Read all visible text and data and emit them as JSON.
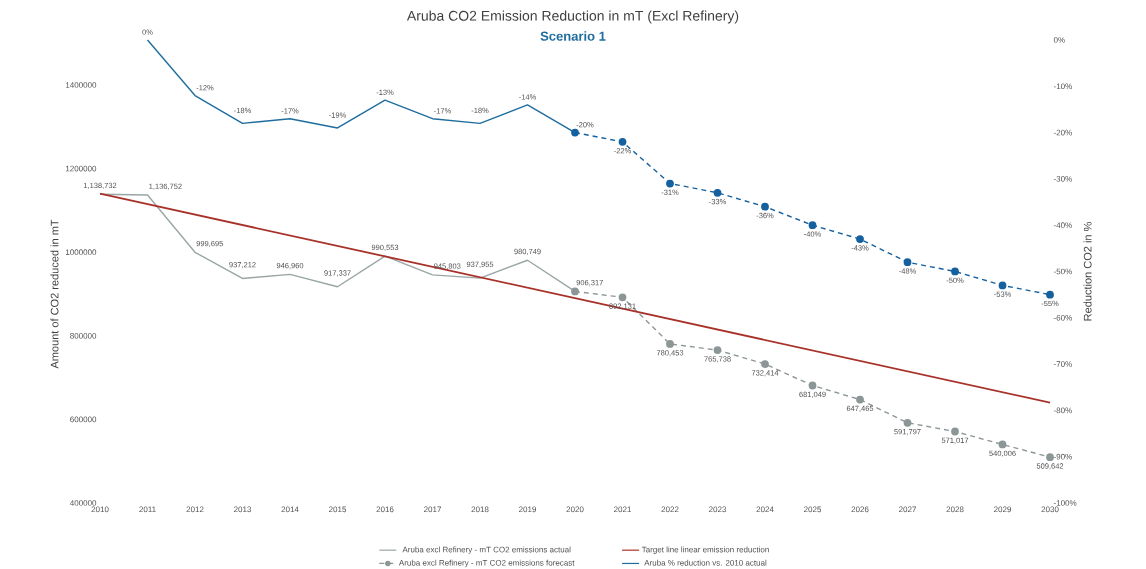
{
  "chart_data": {
    "type": "line",
    "title": "Aruba CO2 Emission Reduction in mT (Excl Refinery)",
    "subtitle": "Scenario 1",
    "ylabel": "Amount of CO2 reduced in mT",
    "y2label": "Reduction CO2 in %",
    "xlim": [
      2010,
      2030
    ],
    "xticks": [
      2010,
      2011,
      2012,
      2013,
      2014,
      2015,
      2016,
      2017,
      2018,
      2019,
      2020,
      2021,
      2022,
      2023,
      2024,
      2025,
      2026,
      2027,
      2028,
      2029,
      2030
    ],
    "ylim": [
      400000,
      1400000
    ],
    "yticks": [
      400000,
      600000,
      800000,
      1000000,
      1200000,
      1400000
    ],
    "y2lim": [
      -100,
      0
    ],
    "y2ticks": [
      {
        "value": 0,
        "label": "0%"
      },
      {
        "value": -10,
        "label": "-10%"
      },
      {
        "value": -20,
        "label": "-20%"
      },
      {
        "value": -30,
        "label": "-30%"
      },
      {
        "value": -40,
        "label": "-40%"
      },
      {
        "value": -50,
        "label": "-50%"
      },
      {
        "value": -60,
        "label": "-60%"
      },
      {
        "value": -70,
        "label": "-70%"
      },
      {
        "value": -80,
        "label": "-80%"
      },
      {
        "value": -90,
        "label": "-90%"
      },
      {
        "value": -100,
        "label": "-100%"
      }
    ],
    "legend": "bottom",
    "grid": false,
    "series": [
      {
        "name": "Aruba excl Refinery - mT CO2 emissions actual",
        "color": "#9aa5a5",
        "marker": "none",
        "line_style": "solid",
        "x": [
          2010,
          2011,
          2012,
          2013,
          2014,
          2015,
          2016,
          2017,
          2018,
          2019,
          2020
        ],
        "values": [
          1138732,
          1136752,
          999695,
          937212,
          946960,
          917337,
          990553,
          945803,
          937955,
          980749,
          906317
        ],
        "value_labels": [
          "1,138,732",
          "1,136,752",
          "999,695",
          "937,212",
          "946,960",
          "917,337",
          "990,553",
          "945,803",
          "937,955",
          "980,749",
          "906,317"
        ]
      },
      {
        "name": "Aruba excl Refinery - mT CO2 emissions forecast",
        "color": "#8c9696",
        "marker": "circle",
        "line_style": "dashed",
        "x": [
          2020,
          2021,
          2022,
          2023,
          2024,
          2025,
          2026,
          2027,
          2028,
          2029,
          2030
        ],
        "values": [
          906000,
          892131,
          780453,
          765738,
          732414,
          681049,
          647465,
          591797,
          571017,
          540006,
          509642
        ],
        "value_labels": [
          null,
          "892,131",
          "780,453",
          "765,738",
          "732,414",
          "681,049",
          "647,465",
          "591,797",
          "571,017",
          "540,006",
          "509,642"
        ]
      },
      {
        "name": "Target line linear emission reduction",
        "color": "#a8322a",
        "marker": "none",
        "line_style": "solid",
        "x": [
          2010,
          2030
        ],
        "values": [
          1140000,
          640000
        ]
      },
      {
        "name": "Aruba % reduction vs. 2010 actual",
        "color": "#1f6d9e",
        "marker": "none",
        "line_style": "solid",
        "axis": "y2",
        "x": [
          2011,
          2012,
          2013,
          2014,
          2015,
          2016,
          2017,
          2018,
          2019,
          2020
        ],
        "values": [
          0,
          -12,
          -18,
          -17,
          -19,
          -13,
          -17,
          -18,
          -14,
          -20
        ],
        "value_labels": [
          "0%",
          "-12%",
          "-18%",
          "-17%",
          "-19%",
          "-13%",
          "-17%",
          "-18%",
          "-14%",
          "-20%"
        ]
      },
      {
        "color": "#15609e",
        "marker": "circle",
        "line_style": "dashed",
        "axis": "y2",
        "x": [
          2020,
          2021,
          2022,
          2023,
          2024,
          2025,
          2026,
          2027,
          2028,
          2029,
          2030
        ],
        "values": [
          -20,
          -22,
          -31,
          -33,
          -36,
          -40,
          -43,
          -48,
          -50,
          -53,
          -55
        ],
        "value_labels": [
          null,
          "-22%",
          "-31%",
          "-33%",
          "-36%",
          "-40%",
          "-43%",
          "-48%",
          "-50%",
          "-53%",
          "-55%"
        ]
      }
    ]
  }
}
